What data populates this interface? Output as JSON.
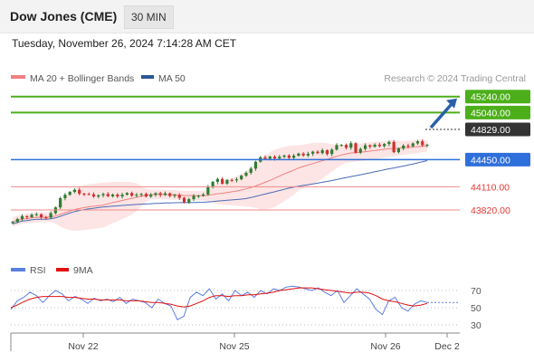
{
  "header": {
    "title": "Dow Jones (CME)",
    "interval": "30 MIN",
    "datetime": "Tuesday, November 26, 2024 7:14:28 AM CET"
  },
  "legend": {
    "ma20_label": "MA 20 + Bollinger Bands",
    "ma50_label": "MA 50",
    "credit": "Research © 2024 Trading Central",
    "rsi_label": "RSI",
    "ma9_label": "9MA"
  },
  "colors": {
    "candle_up": "#2e7d32",
    "candle_down": "#d32f2f",
    "resistance": "#4caf1a",
    "current_price": "#333333",
    "pivot": "#2f6fdb",
    "support": "#e53935",
    "bollinger_fill": "#fde0e0",
    "ma20": "#f08080",
    "ma50": "#4a6bb5",
    "rsi": "#5b7fde",
    "rsi_ma9": "#e01010",
    "arrow": "#2a5fa8"
  },
  "chart_data": [
    {
      "type": "candlestick",
      "title": "Dow Jones (CME) 30 MIN",
      "x_tick_labels": [
        "Nov 22",
        "Nov 25",
        "Nov 26",
        "Dec 2"
      ],
      "close_path": [
        [
          0,
          43690
        ],
        [
          2,
          43730
        ],
        [
          4,
          43760
        ],
        [
          6,
          43740
        ],
        [
          7,
          43720
        ],
        [
          8,
          43760
        ],
        [
          9,
          43860
        ],
        [
          10,
          43960
        ],
        [
          11,
          44030
        ],
        [
          12,
          44050
        ],
        [
          13,
          44060
        ],
        [
          14,
          44040
        ],
        [
          15,
          44020
        ],
        [
          16,
          44000
        ],
        [
          18,
          44000
        ],
        [
          20,
          44000
        ],
        [
          22,
          44010
        ],
        [
          24,
          44020
        ],
        [
          26,
          44010
        ],
        [
          28,
          44000
        ],
        [
          30,
          44010
        ],
        [
          32,
          44020
        ],
        [
          34,
          44010
        ],
        [
          35,
          43960
        ],
        [
          36,
          43930
        ],
        [
          38,
          43980
        ],
        [
          39,
          44010
        ],
        [
          40,
          44010
        ],
        [
          41,
          44090
        ],
        [
          42,
          44180
        ],
        [
          43,
          44200
        ],
        [
          44,
          44170
        ],
        [
          45,
          44200
        ],
        [
          46,
          44180
        ],
        [
          47,
          44220
        ],
        [
          48,
          44250
        ],
        [
          49,
          44270
        ],
        [
          50,
          44350
        ],
        [
          51,
          44420
        ],
        [
          52,
          44460
        ],
        [
          54,
          44480
        ],
        [
          56,
          44490
        ],
        [
          58,
          44490
        ],
        [
          60,
          44510
        ],
        [
          62,
          44520
        ],
        [
          64,
          44540
        ],
        [
          65,
          44560
        ],
        [
          66,
          44540
        ],
        [
          67,
          44580
        ],
        [
          68,
          44620
        ],
        [
          69,
          44650
        ],
        [
          70,
          44600
        ],
        [
          71,
          44640
        ],
        [
          72,
          44550
        ],
        [
          73,
          44580
        ],
        [
          74,
          44610
        ],
        [
          76,
          44630
        ],
        [
          78,
          44650
        ],
        [
          79,
          44660
        ],
        [
          80,
          44560
        ],
        [
          81,
          44590
        ],
        [
          82,
          44610
        ],
        [
          83,
          44630
        ],
        [
          84,
          44650
        ],
        [
          85,
          44660
        ],
        [
          86,
          44640
        ],
        [
          87,
          44630
        ]
      ],
      "levels": [
        {
          "value": 45240,
          "label": "45240.00",
          "role": "resistance"
        },
        {
          "value": 45040,
          "label": "45040.00",
          "role": "resistance"
        },
        {
          "value": 44829,
          "label": "44829.00",
          "role": "current"
        },
        {
          "value": 44450,
          "label": "44450.00",
          "role": "pivot"
        },
        {
          "value": 44110,
          "label": "44110.00",
          "role": "support"
        },
        {
          "value": 43820,
          "label": "43820.00",
          "role": "support"
        }
      ],
      "overlays": [
        "MA 20 + Bollinger Bands",
        "MA 50"
      ],
      "grid": false
    },
    {
      "type": "line",
      "series": [
        {
          "name": "RSI",
          "values": [
            48,
            58,
            62,
            68,
            64,
            56,
            64,
            70,
            66,
            58,
            63,
            60,
            55,
            61,
            58,
            60,
            57,
            62,
            55,
            60,
            58,
            56,
            50,
            60,
            55,
            52,
            36,
            40,
            62,
            68,
            64,
            72,
            60,
            66,
            58,
            70,
            64,
            68,
            62,
            70,
            66,
            72,
            70,
            74,
            75,
            74,
            72,
            70,
            73,
            68,
            64,
            70,
            56,
            64,
            72,
            66,
            60,
            48,
            42,
            58,
            62,
            50,
            46,
            54,
            58,
            56
          ]
        },
        {
          "name": "9MA",
          "values": [
            50,
            53,
            57,
            60,
            62,
            63,
            63,
            63,
            63,
            62,
            62,
            61,
            60,
            60,
            59,
            59,
            59,
            59,
            58,
            58,
            58,
            57,
            56,
            56,
            55,
            54,
            52,
            51,
            52,
            55,
            58,
            62,
            64,
            64,
            63,
            64,
            64,
            65,
            65,
            66,
            67,
            68,
            70,
            71,
            72,
            73,
            73,
            73,
            72,
            71,
            70,
            69,
            68,
            67,
            68,
            68,
            67,
            64,
            60,
            58,
            57,
            55,
            53,
            52,
            53,
            55
          ]
        }
      ],
      "y_ticks": [
        70,
        50,
        30
      ]
    }
  ]
}
